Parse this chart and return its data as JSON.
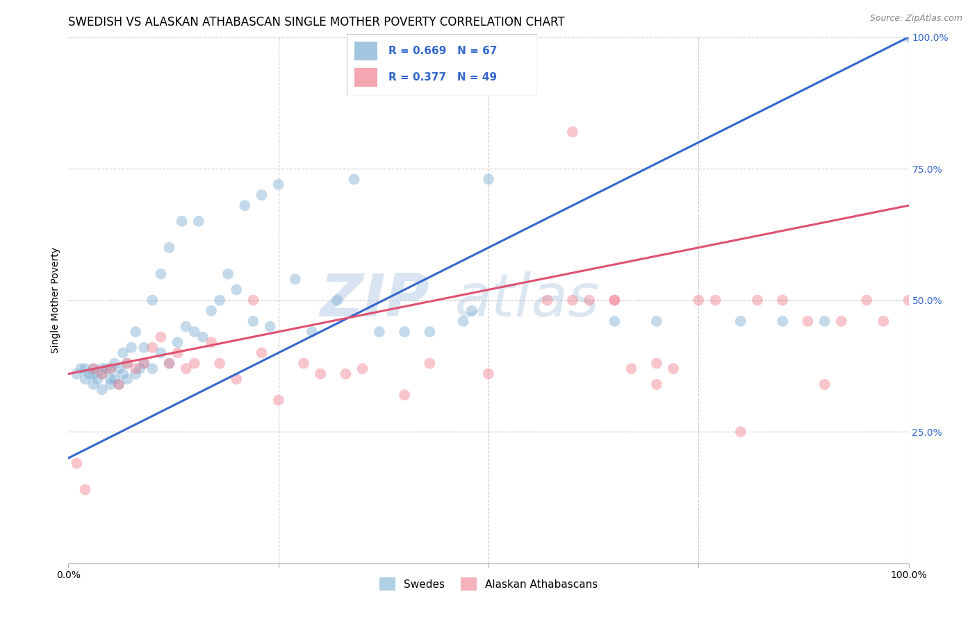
{
  "title": "SWEDISH VS ALASKAN ATHABASCAN SINGLE MOTHER POVERTY CORRELATION CHART",
  "source": "Source: ZipAtlas.com",
  "ylabel": "Single Mother Poverty",
  "xlim": [
    0,
    1
  ],
  "ylim": [
    0,
    1
  ],
  "grid_color": "#c8c8c8",
  "background_color": "#ffffff",
  "blue_color": "#7dafd4",
  "pink_color": "#f08090",
  "blue_line_color": "#3366cc",
  "pink_line_color": "#e05070",
  "legend_r_blue": "R = 0.669",
  "legend_n_blue": "N = 67",
  "legend_r_pink": "R = 0.377",
  "legend_n_pink": "N = 49",
  "legend_label_blue": "Swedes",
  "legend_label_pink": "Alaskan Athabascans",
  "blue_scatter_x": [
    0.01,
    0.015,
    0.02,
    0.02,
    0.025,
    0.03,
    0.03,
    0.03,
    0.035,
    0.04,
    0.04,
    0.04,
    0.045,
    0.05,
    0.05,
    0.05,
    0.055,
    0.055,
    0.06,
    0.06,
    0.065,
    0.065,
    0.07,
    0.07,
    0.075,
    0.08,
    0.08,
    0.085,
    0.09,
    0.09,
    0.1,
    0.1,
    0.11,
    0.11,
    0.12,
    0.12,
    0.13,
    0.135,
    0.14,
    0.15,
    0.155,
    0.16,
    0.17,
    0.18,
    0.19,
    0.2,
    0.21,
    0.22,
    0.23,
    0.24,
    0.25,
    0.27,
    0.29,
    0.32,
    0.34,
    0.37,
    0.4,
    0.43,
    0.47,
    0.48,
    0.5,
    0.65,
    0.7,
    0.8,
    0.85,
    0.9,
    1.0
  ],
  "blue_scatter_y": [
    0.36,
    0.37,
    0.35,
    0.37,
    0.36,
    0.34,
    0.36,
    0.37,
    0.35,
    0.33,
    0.36,
    0.37,
    0.37,
    0.34,
    0.35,
    0.37,
    0.35,
    0.38,
    0.34,
    0.37,
    0.36,
    0.4,
    0.35,
    0.38,
    0.41,
    0.36,
    0.44,
    0.37,
    0.38,
    0.41,
    0.37,
    0.5,
    0.4,
    0.55,
    0.38,
    0.6,
    0.42,
    0.65,
    0.45,
    0.44,
    0.65,
    0.43,
    0.48,
    0.5,
    0.55,
    0.52,
    0.68,
    0.46,
    0.7,
    0.45,
    0.72,
    0.54,
    0.44,
    0.5,
    0.73,
    0.44,
    0.44,
    0.44,
    0.46,
    0.48,
    0.73,
    0.46,
    0.46,
    0.46,
    0.46,
    0.46,
    1.0
  ],
  "pink_scatter_x": [
    0.01,
    0.02,
    0.03,
    0.04,
    0.05,
    0.06,
    0.07,
    0.08,
    0.09,
    0.1,
    0.11,
    0.12,
    0.13,
    0.14,
    0.15,
    0.17,
    0.18,
    0.2,
    0.22,
    0.23,
    0.25,
    0.28,
    0.3,
    0.33,
    0.35,
    0.4,
    0.43,
    0.5,
    0.57,
    0.6,
    0.62,
    0.65,
    0.67,
    0.7,
    0.75,
    0.77,
    0.8,
    0.82,
    0.85,
    0.88,
    0.9,
    0.92,
    0.95,
    0.97,
    1.0,
    0.6,
    0.65,
    0.7,
    0.72
  ],
  "pink_scatter_y": [
    0.19,
    0.14,
    0.37,
    0.36,
    0.37,
    0.34,
    0.38,
    0.37,
    0.38,
    0.41,
    0.43,
    0.38,
    0.4,
    0.37,
    0.38,
    0.42,
    0.38,
    0.35,
    0.5,
    0.4,
    0.31,
    0.38,
    0.36,
    0.36,
    0.37,
    0.32,
    0.38,
    0.36,
    0.5,
    0.5,
    0.5,
    0.5,
    0.37,
    0.34,
    0.5,
    0.5,
    0.25,
    0.5,
    0.5,
    0.46,
    0.34,
    0.46,
    0.5,
    0.46,
    0.5,
    0.82,
    0.5,
    0.38,
    0.37
  ],
  "blue_line_x0": 0.0,
  "blue_line_x1": 1.0,
  "blue_line_y0": 0.2,
  "blue_line_y1": 1.0,
  "pink_line_x0": 0.0,
  "pink_line_x1": 1.0,
  "pink_line_y0": 0.36,
  "pink_line_y1": 0.68,
  "marker_size": 130,
  "marker_alpha": 0.45,
  "title_fontsize": 12,
  "axis_label_fontsize": 10,
  "tick_fontsize": 10,
  "legend_fontsize": 11,
  "right_tick_color": "#3366cc",
  "watermark_zip_color": "#b8cfe8",
  "watermark_atlas_color": "#b0c8e0"
}
